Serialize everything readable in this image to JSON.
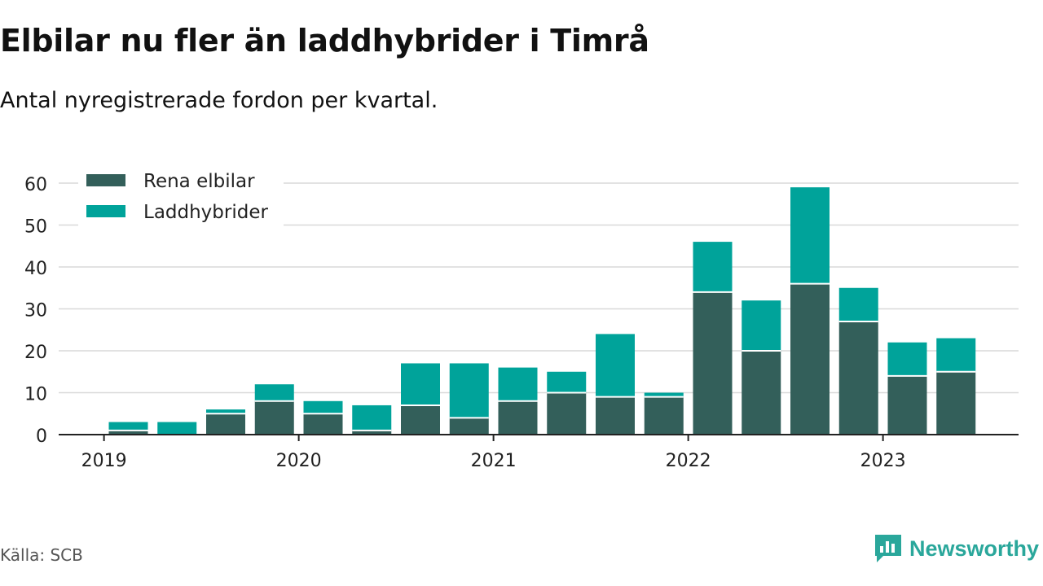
{
  "header": {
    "title": "Elbilar nu fler än laddhybrider i Timrå",
    "subtitle": "Antal nyregistrerade fordon per kvartal."
  },
  "footer": {
    "source": "Källa: SCB",
    "brand": "Newsworthy"
  },
  "colors": {
    "electric": "#335f5a",
    "hybrid": "#00a39a",
    "grid": "#d9d9d9",
    "axis": "#222222",
    "brand": "#2aa79b"
  },
  "chart_data": {
    "type": "bar",
    "stacked": true,
    "title": "Elbilar nu fler än laddhybrider i Timrå",
    "subtitle": "Antal nyregistrerade fordon per kvartal.",
    "xlabel": "",
    "ylabel": "",
    "ylim": [
      0,
      60
    ],
    "yticks": [
      0,
      10,
      20,
      30,
      40,
      50,
      60
    ],
    "grid": true,
    "legend_position": "top-left",
    "x_tick_labels": [
      "2019",
      "2020",
      "2021",
      "2022",
      "2023"
    ],
    "categories": [
      "2019 K1",
      "2019 K2",
      "2019 K3",
      "2019 K4",
      "2020 K1",
      "2020 K2",
      "2020 K3",
      "2020 K4",
      "2021 K1",
      "2021 K2",
      "2021 K3",
      "2021 K4",
      "2022 K1",
      "2022 K2",
      "2022 K3",
      "2022 K4",
      "2023 K1",
      "2023 K2",
      "2023 K3"
    ],
    "series": [
      {
        "name": "Rena elbilar",
        "values": [
          1,
          0,
          5,
          8,
          5,
          1,
          7,
          4,
          8,
          10,
          9,
          9,
          34,
          20,
          36,
          27,
          14,
          15,
          0
        ]
      },
      {
        "name": "Laddhybrider",
        "values": [
          2,
          3,
          1,
          4,
          3,
          6,
          10,
          13,
          8,
          5,
          15,
          1,
          12,
          12,
          23,
          8,
          8,
          8,
          0
        ]
      }
    ]
  }
}
